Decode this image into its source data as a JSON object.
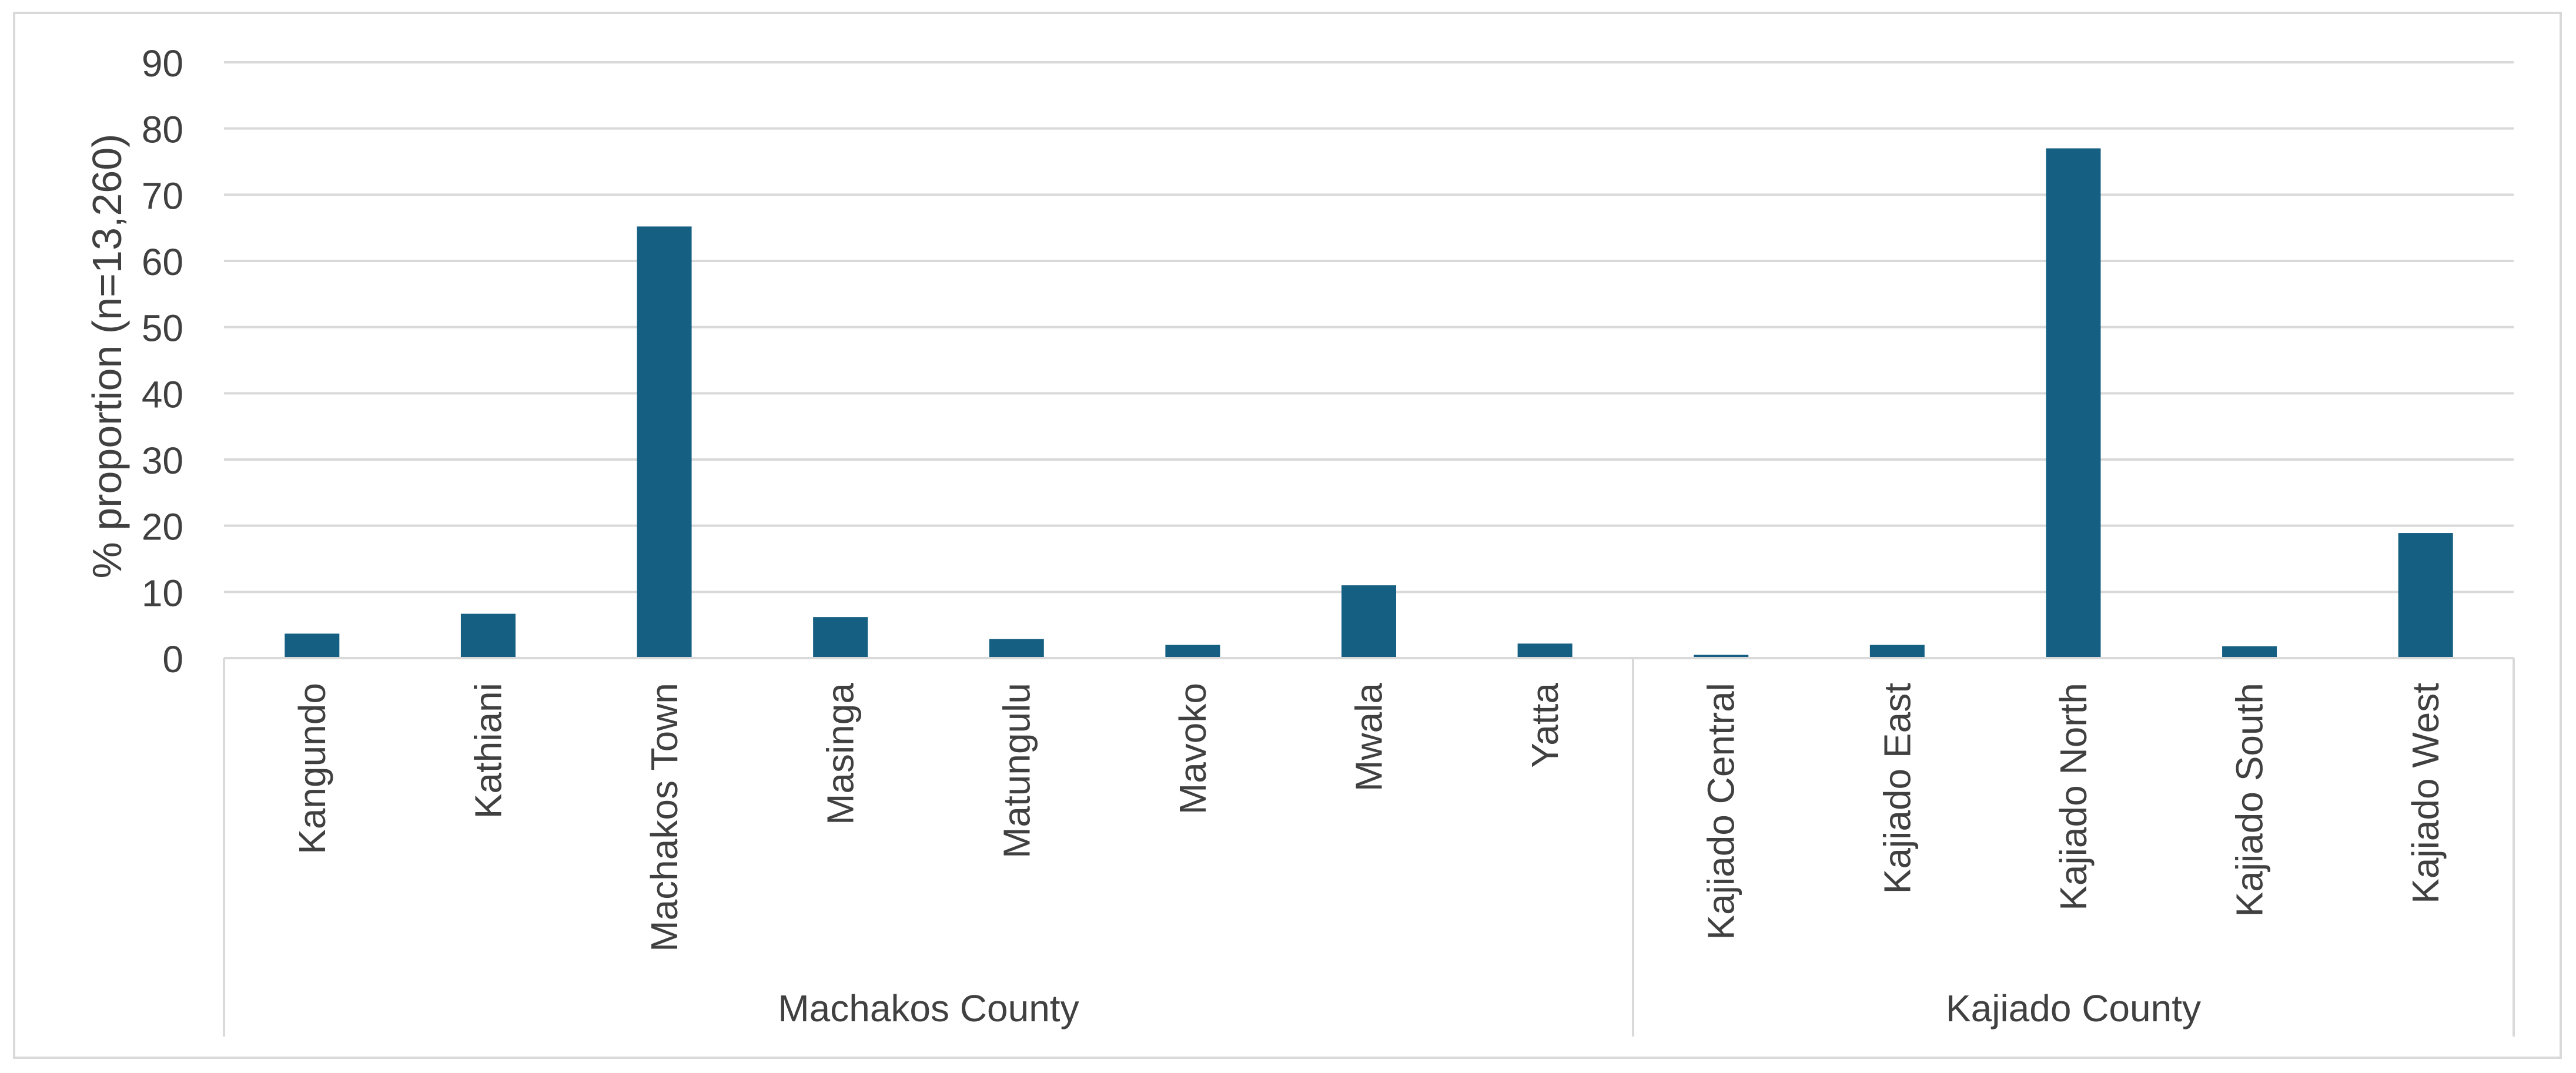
{
  "chart_data": {
    "type": "bar",
    "title": "",
    "ylabel": "% proportion (n=13,260)",
    "ylim": [
      0,
      90
    ],
    "yticks": [
      0,
      10,
      20,
      30,
      40,
      50,
      60,
      70,
      80,
      90
    ],
    "grid": true,
    "legend": "none",
    "bar_color": "#155f82",
    "groups": [
      {
        "name": "Machakos County",
        "categories": [
          "Kangundo",
          "Kathiani",
          "Machakos Town",
          "Masinga",
          "Matungulu",
          "Mavoko",
          "Mwala",
          "Yatta"
        ]
      },
      {
        "name": "Kajiado County",
        "categories": [
          "Kajiado Central",
          "Kajiado East",
          "Kajiado North",
          "Kajiado South",
          "Kajiado West"
        ]
      }
    ],
    "categories": [
      "Kangundo",
      "Kathiani",
      "Machakos Town",
      "Masinga",
      "Matungulu",
      "Mavoko",
      "Mwala",
      "Yatta",
      "Kajiado Central",
      "Kajiado East",
      "Kajiado North",
      "Kajiado South",
      "Kajiado West"
    ],
    "values": [
      3.7,
      6.7,
      65.2,
      6.2,
      2.9,
      2.0,
      11.0,
      2.2,
      0.5,
      2.0,
      77.0,
      1.8,
      18.9
    ]
  }
}
